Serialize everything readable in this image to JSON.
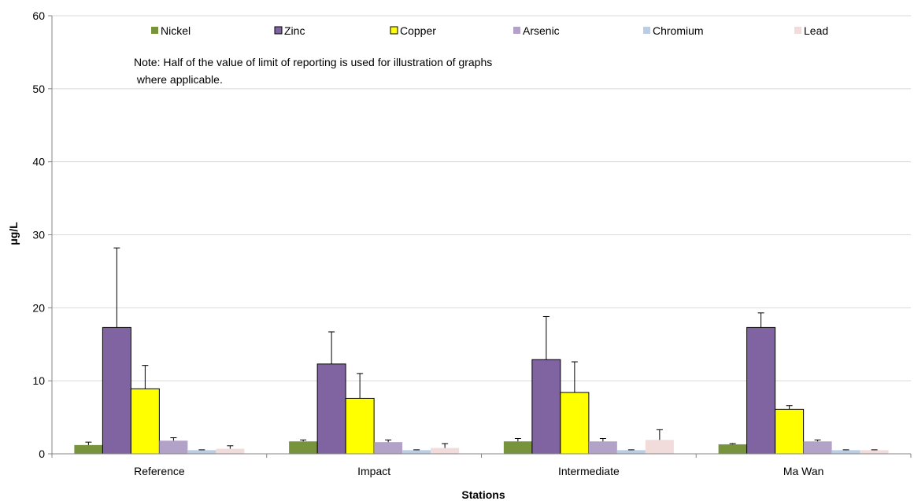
{
  "chart_data": {
    "type": "bar",
    "categories": [
      "Reference",
      "Impact",
      "Intermediate",
      "Ma Wan"
    ],
    "series": [
      {
        "name": "Nickel",
        "color": "#77933c",
        "values": [
          1.2,
          1.7,
          1.7,
          1.3
        ],
        "errors": [
          0.4,
          0.2,
          0.4,
          0.1
        ]
      },
      {
        "name": "Zinc",
        "color": "#8064a2",
        "values": [
          17.3,
          12.3,
          12.9,
          17.3
        ],
        "errors": [
          10.9,
          4.4,
          5.9,
          2.0
        ]
      },
      {
        "name": "Copper",
        "color": "#ffff00",
        "values": [
          8.9,
          7.6,
          8.4,
          6.1
        ],
        "errors": [
          3.2,
          3.4,
          4.2,
          0.5
        ]
      },
      {
        "name": "Arsenic",
        "color": "#b3a2c7",
        "values": [
          1.8,
          1.6,
          1.7,
          1.7
        ],
        "errors": [
          0.4,
          0.3,
          0.4,
          0.2
        ]
      },
      {
        "name": "Chromium",
        "color": "#b9cde5",
        "values": [
          0.5,
          0.5,
          0.5,
          0.5
        ],
        "errors": [
          0.05,
          0.05,
          0.05,
          0.05
        ]
      },
      {
        "name": "Lead",
        "color": "#f2dcdb",
        "values": [
          0.7,
          0.8,
          1.9,
          0.5
        ],
        "errors": [
          0.4,
          0.6,
          1.4,
          0.05
        ]
      }
    ],
    "xlabel": "Stations",
    "ylabel": "μg/L",
    "ylim": [
      0,
      60
    ],
    "yticks": [
      0,
      10,
      20,
      30,
      40,
      50,
      60
    ],
    "grid": true,
    "legend_position": "top",
    "note_lines": [
      "Note: Half of the value of limit of reporting is used for illustration of graphs",
      " where applicable."
    ]
  }
}
